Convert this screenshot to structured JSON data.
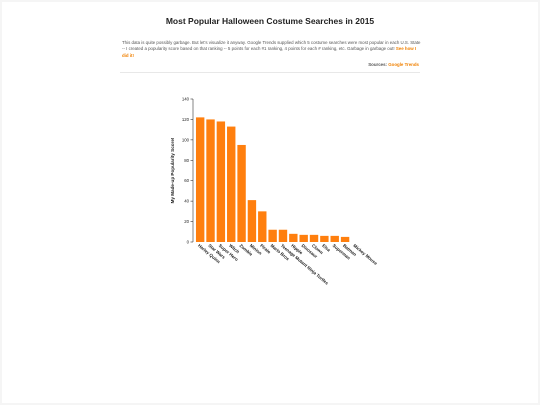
{
  "page": {
    "title": "Most Popular Halloween Costume Searches in 2015",
    "description": "This data is quite possibly garbage. But let's visualize it anyway. Google Trends supplied which 5 costume searches were most popular in each U.S. State -- I created a popularity score based on that ranking -- 5 points for each #1 ranking, 4 points for each # ranking, etc. Garbage in garbage out!",
    "link_label": "See how I did it!",
    "sources_label": "Sources:",
    "sources_link": "Google Trends"
  },
  "chart_data": {
    "type": "bar",
    "title": "",
    "xlabel": "",
    "ylabel": "My Made-up Popularity Score!",
    "ylim": [
      0,
      140
    ],
    "yticks": [
      0,
      20,
      40,
      60,
      80,
      100,
      120,
      140
    ],
    "bar_color": "#ff7f0e",
    "categories": [
      "Harley Quinn",
      "Star Wars",
      "Super Hero",
      "Witch",
      "Zombie",
      "Minion",
      "Pirate",
      "Mario Bros",
      "Teenage Mutant Ninja Turtles",
      "Hippie",
      "Dinosaur",
      "Clown",
      "Elsa",
      "Superman",
      "Batman",
      "Mickey Mouse"
    ],
    "values": [
      122,
      120,
      118,
      113,
      95,
      41,
      30,
      12,
      12,
      8,
      7,
      7,
      6,
      6,
      5,
      0
    ]
  }
}
